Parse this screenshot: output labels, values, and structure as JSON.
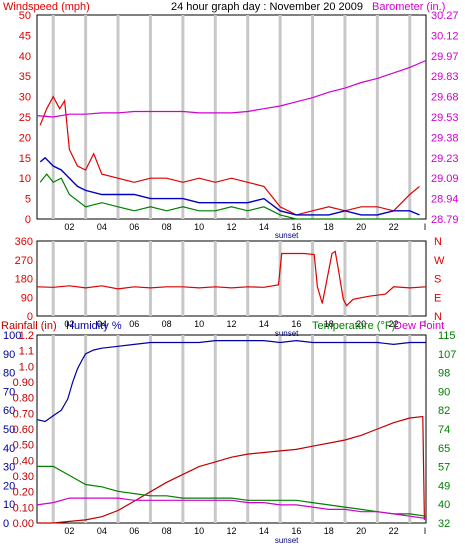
{
  "header": {
    "left_title": "Windspeed (mph)",
    "center_title": "24 hour graph day : November 20 2009",
    "right_title": "Barometer (in.)"
  },
  "colors": {
    "windspeed": "#e00000",
    "gust": "#e00000",
    "average": "#0000c0",
    "low": "#008000",
    "barometer": "#d000d0",
    "direction": "#e00000",
    "humidity": "#0000a0",
    "rainfall": "#c00000",
    "temperature": "#008000",
    "dewpoint": "#d000d0",
    "grid": "#c8c8c8"
  },
  "x_axis": {
    "ticks": [
      "02",
      "04",
      "06",
      "08",
      "10",
      "12",
      "14",
      "16",
      "18",
      "20",
      "22"
    ],
    "last_tick": "I",
    "marker_label": "sunset"
  },
  "panel_wind": {
    "left_ticks": [
      "50",
      "45",
      "40",
      "35",
      "30",
      "25",
      "20",
      "15",
      "10",
      "5",
      "0"
    ],
    "right_ticks": [
      "30.27",
      "30.12",
      "29.97",
      "29.83",
      "29.68",
      "29.53",
      "29.38",
      "29.23",
      "29.09",
      "28.94",
      "28.79"
    ]
  },
  "panel_dir": {
    "left_ticks": [
      "360",
      "270",
      "180",
      "90",
      "0"
    ],
    "right_letters": [
      "N",
      "W",
      "S",
      "E",
      "N"
    ]
  },
  "panel_bottom": {
    "rain_label": "Rainfall (in)",
    "hum_label": "Humidity %",
    "temp_label": "Temperature (°F)",
    "dew_label": "Dew Point",
    "hum_ticks": [
      "100",
      "90",
      "80",
      "70",
      "60",
      "50",
      "40",
      "30",
      "20",
      "10",
      "0"
    ],
    "rain_ticks": [
      "1.2",
      "1.1",
      "1.0",
      "0.90",
      "0.80",
      "0.70",
      "0.60",
      "0.50",
      "0.40",
      "0.30",
      "0.20",
      "0.10",
      "0.00"
    ],
    "temp_ticks": [
      "115",
      "107",
      "98",
      "90",
      "82",
      "74",
      "65",
      "57",
      "49",
      "40",
      "32"
    ]
  },
  "chart_data": [
    {
      "type": "line",
      "title": "24 hour graph day : November 20 2009",
      "x_range_hours": [
        0,
        24
      ],
      "left_axis": {
        "label": "Windspeed (mph)",
        "range": [
          0,
          50
        ]
      },
      "right_axis": {
        "label": "Barometer (in.)",
        "range": [
          28.79,
          30.27
        ]
      },
      "series": [
        {
          "name": "Windspeed",
          "axis": "left",
          "note": "gust",
          "x": [
            0.2,
            0.6,
            1.0,
            1.4,
            1.7,
            2.0,
            2.5,
            3,
            3.5,
            4,
            5,
            6,
            7,
            8,
            9,
            10,
            11,
            12,
            13,
            14,
            15,
            16,
            17,
            18,
            19,
            20,
            21,
            22,
            23,
            23.6
          ],
          "y": [
            23,
            27,
            30,
            27,
            29,
            17,
            13,
            12,
            16,
            11,
            10,
            9,
            10,
            10,
            9,
            10,
            9,
            10,
            9,
            8,
            3,
            1,
            2,
            3,
            2,
            3,
            3,
            2,
            6,
            8
          ]
        },
        {
          "name": "Windspeed",
          "axis": "left",
          "note": "average",
          "x": [
            0.2,
            0.5,
            1.0,
            1.5,
            2.0,
            2.5,
            3,
            4,
            5,
            6,
            7,
            8,
            9,
            10,
            11,
            12,
            13,
            14,
            15,
            16,
            17,
            18,
            19,
            20,
            21,
            22,
            23,
            23.6
          ],
          "y": [
            14,
            15,
            13,
            12,
            10,
            8,
            7,
            6,
            6,
            6,
            5,
            5,
            5,
            4,
            4,
            4,
            4,
            5,
            2,
            1,
            1,
            1,
            2,
            1,
            1,
            2,
            2,
            1
          ]
        },
        {
          "name": "Windspeed",
          "axis": "left",
          "note": "low",
          "x": [
            0.2,
            0.6,
            1.0,
            1.5,
            2.0,
            3,
            4,
            5,
            6,
            7,
            8,
            9,
            10,
            11,
            12,
            13,
            14,
            15,
            16,
            17,
            18,
            19,
            20,
            21,
            22,
            23,
            23.6
          ],
          "y": [
            9,
            11,
            9,
            10,
            6,
            3,
            4,
            3,
            2,
            3,
            2,
            3,
            2,
            2,
            3,
            2,
            3,
            1,
            0,
            0,
            0,
            0,
            0,
            0,
            0,
            0,
            0
          ]
        },
        {
          "name": "Barometer (in.)",
          "axis": "right",
          "x": [
            0,
            1,
            2,
            3,
            4,
            5,
            6,
            7,
            8,
            9,
            10,
            11,
            12,
            13,
            14,
            15,
            16,
            17,
            18,
            19,
            20,
            21,
            22,
            23,
            24
          ],
          "y": [
            29.54,
            29.53,
            29.55,
            29.55,
            29.56,
            29.56,
            29.57,
            29.57,
            29.57,
            29.57,
            29.56,
            29.56,
            29.56,
            29.57,
            29.59,
            29.61,
            29.64,
            29.67,
            29.71,
            29.74,
            29.78,
            29.81,
            29.85,
            29.89,
            29.94
          ]
        }
      ]
    },
    {
      "type": "line",
      "x_range_hours": [
        0,
        24
      ],
      "left_axis": {
        "range": [
          0,
          360
        ]
      },
      "right_axis": {
        "ticks": [
          "N",
          "W",
          "S",
          "E",
          "N"
        ]
      },
      "series": [
        {
          "name": "Wind direction",
          "axis": "left",
          "x": [
            0,
            1,
            2,
            3,
            4,
            5,
            6,
            7,
            8,
            9,
            10,
            11,
            12,
            13,
            14,
            14.9,
            15.1,
            15.5,
            16.5,
            17.1,
            17.3,
            17.6,
            18.2,
            18.4,
            18.6,
            18.9,
            19.1,
            19.5,
            20.5,
            21.5,
            22,
            23,
            24
          ],
          "y": [
            140,
            138,
            145,
            135,
            145,
            130,
            140,
            135,
            140,
            140,
            135,
            140,
            135,
            140,
            138,
            150,
            300,
            300,
            300,
            295,
            140,
            60,
            300,
            310,
            220,
            80,
            50,
            80,
            95,
            105,
            140,
            135,
            140
          ]
        }
      ]
    },
    {
      "type": "line",
      "x_range_hours": [
        0,
        24
      ],
      "left_axis": {
        "label": "Humidity %",
        "range": [
          0,
          100
        ]
      },
      "left_axis_2": {
        "label": "Rainfall (in)",
        "range": [
          0,
          1.2
        ]
      },
      "right_axis": {
        "label": "Temperature (°F)",
        "range": [
          32,
          115
        ]
      },
      "series": [
        {
          "name": "Humidity %",
          "axis": "left",
          "x": [
            0,
            0.5,
            1,
            1.5,
            1.9,
            2.2,
            2.5,
            2.8,
            3,
            3.5,
            4,
            5,
            6,
            7,
            8,
            9,
            10,
            11,
            12,
            13,
            14,
            15,
            16,
            17,
            18,
            19,
            20,
            21,
            22,
            23,
            24
          ],
          "y": [
            55,
            54,
            57,
            60,
            66,
            75,
            82,
            87,
            90,
            92,
            93,
            94,
            95,
            96,
            96,
            96,
            96,
            97,
            97,
            97,
            97,
            96,
            97,
            96,
            96,
            96,
            96,
            96,
            95,
            96,
            96
          ]
        },
        {
          "name": "Rainfall (in)",
          "axis": "left2",
          "x": [
            0,
            1,
            2,
            3,
            4,
            5,
            6,
            7,
            8,
            9,
            10,
            11,
            12,
            13,
            14,
            15,
            16,
            17,
            18,
            19,
            20,
            21,
            22,
            23,
            23.8,
            23.9
          ],
          "y": [
            0,
            0,
            0.01,
            0.02,
            0.04,
            0.08,
            0.14,
            0.2,
            0.26,
            0.31,
            0.36,
            0.39,
            0.42,
            0.44,
            0.45,
            0.46,
            0.47,
            0.49,
            0.51,
            0.53,
            0.56,
            0.6,
            0.64,
            0.67,
            0.68,
            0.02
          ]
        },
        {
          "name": "Temperature (°F)",
          "axis": "right",
          "x": [
            0,
            1,
            2,
            3,
            4,
            5,
            6,
            7,
            8,
            9,
            10,
            11,
            12,
            13,
            14,
            15,
            16,
            17,
            18,
            19,
            20,
            21,
            22,
            23,
            24
          ],
          "y": [
            57,
            57,
            53,
            49,
            48,
            46,
            45,
            44,
            44,
            43,
            43,
            43,
            43,
            42,
            42,
            42,
            42,
            41,
            40,
            39,
            38,
            37,
            36,
            36,
            35
          ]
        },
        {
          "name": "Dew Point",
          "axis": "right",
          "x": [
            0,
            1,
            2,
            3,
            4,
            5,
            6,
            7,
            8,
            9,
            10,
            11,
            12,
            13,
            14,
            15,
            16,
            17,
            18,
            19,
            20,
            21,
            22,
            23,
            24
          ],
          "y": [
            40,
            41,
            43,
            43,
            43,
            43,
            42,
            42,
            42,
            42,
            42,
            42,
            42,
            41,
            41,
            40,
            40,
            39,
            38,
            38,
            37,
            37,
            36,
            35,
            34
          ]
        }
      ]
    }
  ]
}
